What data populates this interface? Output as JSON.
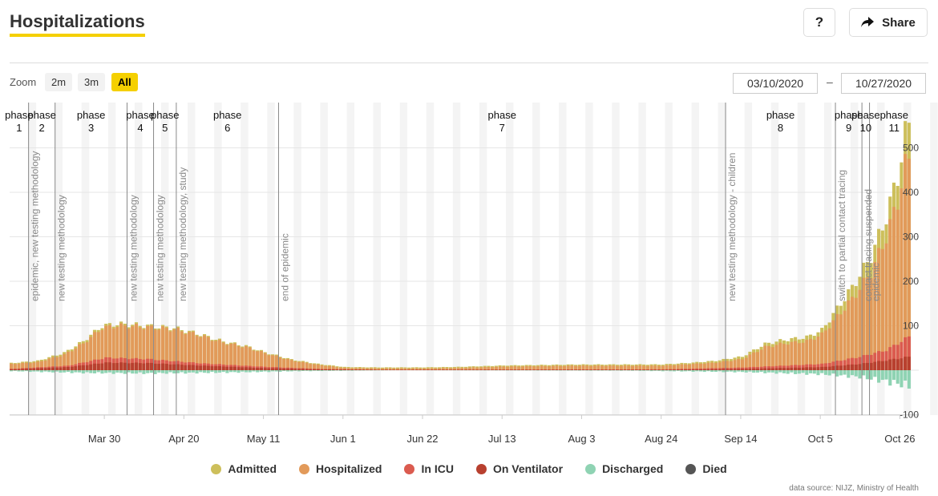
{
  "header": {
    "title": "Hospitalizations",
    "help_label": "?",
    "share_label": "Share"
  },
  "zoom": {
    "label": "Zoom",
    "options": [
      "2m",
      "3m",
      "All"
    ],
    "active": "All"
  },
  "range": {
    "from": "03/10/2020",
    "to": "10/27/2020",
    "separator": "–"
  },
  "source": "data source: NIJZ, Ministry of Health",
  "colors": {
    "admitted": "#cdbf5b",
    "hospitalized": "#e29a5a",
    "icu": "#db5b4f",
    "ventilator": "#b8402f",
    "discharged": "#8fd3b3",
    "died": "#555555"
  },
  "chart_data": {
    "type": "bar",
    "x_range": [
      "2020-03-05",
      "2020-10-31"
    ],
    "ylim": [
      -100,
      560
    ],
    "y_ticks": [
      -100,
      100,
      200,
      300,
      400,
      500
    ],
    "x_ticks": [
      "Mar 30",
      "Apr 20",
      "May 11",
      "Jun 1",
      "Jun 22",
      "Jul 13",
      "Aug 3",
      "Aug 24",
      "Sep 14",
      "Oct 5",
      "Oct 26"
    ],
    "x_tick_dates": [
      "2020-03-30",
      "2020-04-20",
      "2020-05-11",
      "2020-06-01",
      "2020-06-22",
      "2020-07-13",
      "2020-08-03",
      "2020-08-24",
      "2020-09-14",
      "2020-10-05",
      "2020-10-26"
    ],
    "legend": [
      "Admitted",
      "Hospitalized",
      "In ICU",
      "On Ventilator",
      "Discharged",
      "Died"
    ],
    "phases": [
      {
        "label": "phase",
        "num": "1",
        "start": "2020-03-05",
        "end": "2020-03-10"
      },
      {
        "label": "phase",
        "num": "2",
        "start": "2020-03-10",
        "end": "2020-03-17"
      },
      {
        "label": "phase",
        "num": "3",
        "start": "2020-03-17",
        "end": "2020-04-05"
      },
      {
        "label": "phase",
        "num": "4",
        "start": "2020-04-05",
        "end": "2020-04-12"
      },
      {
        "label": "phase",
        "num": "5",
        "start": "2020-04-12",
        "end": "2020-04-18"
      },
      {
        "label": "phase",
        "num": "6",
        "start": "2020-04-18",
        "end": "2020-05-15"
      },
      {
        "label": "phase",
        "num": "7",
        "start": "2020-05-15",
        "end": "2020-09-10"
      },
      {
        "label": "phase",
        "num": "8",
        "start": "2020-09-10",
        "end": "2020-10-09"
      },
      {
        "label": "phase",
        "num": "9",
        "start": "2020-10-09",
        "end": "2020-10-16"
      },
      {
        "label": "phase",
        "num": "10",
        "start": "2020-10-16",
        "end": "2020-10-18"
      },
      {
        "label": "phase",
        "num": "11",
        "start": "2020-10-18",
        "end": "2020-10-31"
      }
    ],
    "annotations": [
      {
        "date": "2020-03-10",
        "text": "epidemic, new testing methodology"
      },
      {
        "date": "2020-03-17",
        "text": "new testing methodology"
      },
      {
        "date": "2020-04-05",
        "text": "new testing methodology"
      },
      {
        "date": "2020-04-12",
        "text": "new testing methodology"
      },
      {
        "date": "2020-04-18",
        "text": "new testing methodology, study"
      },
      {
        "date": "2020-05-15",
        "text": "end of epidemic"
      },
      {
        "date": "2020-09-10",
        "text": "new testing methodology - children"
      },
      {
        "date": "2020-10-09",
        "text": "switch to partial contact tracing"
      },
      {
        "date": "2020-10-16",
        "text": "contact tracing suspended"
      },
      {
        "date": "2020-10-18",
        "text": "epidemic"
      }
    ],
    "series_knots": {
      "hospitalized": [
        [
          "2020-03-05",
          14
        ],
        [
          "2020-03-12",
          18
        ],
        [
          "2020-03-19",
          35
        ],
        [
          "2020-03-24",
          60
        ],
        [
          "2020-03-29",
          95
        ],
        [
          "2020-04-02",
          100
        ],
        [
          "2020-04-08",
          98
        ],
        [
          "2020-04-12",
          95
        ],
        [
          "2020-04-17",
          92
        ],
        [
          "2020-04-23",
          80
        ],
        [
          "2020-04-30",
          62
        ],
        [
          "2020-05-06",
          52
        ],
        [
          "2020-05-11",
          38
        ],
        [
          "2020-05-18",
          22
        ],
        [
          "2020-05-25",
          12
        ],
        [
          "2020-06-01",
          5
        ],
        [
          "2020-06-10",
          4
        ],
        [
          "2020-06-22",
          4
        ],
        [
          "2020-07-01",
          5
        ],
        [
          "2020-07-13",
          8
        ],
        [
          "2020-08-01",
          10
        ],
        [
          "2020-08-24",
          10
        ],
        [
          "2020-09-07",
          17
        ],
        [
          "2020-09-14",
          25
        ],
        [
          "2020-09-20",
          52
        ],
        [
          "2020-09-25",
          60
        ],
        [
          "2020-10-01",
          65
        ],
        [
          "2020-10-05",
          80
        ],
        [
          "2020-10-09",
          120
        ],
        [
          "2020-10-13",
          160
        ],
        [
          "2020-10-18",
          220
        ],
        [
          "2020-10-22",
          300
        ],
        [
          "2020-10-25",
          380
        ],
        [
          "2020-10-27",
          460
        ],
        [
          "2020-10-28",
          470
        ]
      ],
      "admitted_extra": [
        [
          "2020-03-05",
          2
        ],
        [
          "2020-03-25",
          5
        ],
        [
          "2020-04-10",
          3
        ],
        [
          "2020-05-15",
          2
        ],
        [
          "2020-09-01",
          3
        ],
        [
          "2020-10-05",
          10
        ],
        [
          "2020-10-15",
          30
        ],
        [
          "2020-10-22",
          45
        ],
        [
          "2020-10-26",
          60
        ],
        [
          "2020-10-28",
          80
        ]
      ],
      "icu": [
        [
          "2020-03-05",
          3
        ],
        [
          "2020-03-20",
          10
        ],
        [
          "2020-03-30",
          28
        ],
        [
          "2020-04-10",
          25
        ],
        [
          "2020-04-25",
          15
        ],
        [
          "2020-05-10",
          8
        ],
        [
          "2020-05-25",
          3
        ],
        [
          "2020-06-10",
          1
        ],
        [
          "2020-08-24",
          2
        ],
        [
          "2020-09-14",
          6
        ],
        [
          "2020-10-05",
          14
        ],
        [
          "2020-10-15",
          30
        ],
        [
          "2020-10-22",
          45
        ],
        [
          "2020-10-28",
          75
        ]
      ],
      "ventilator": [
        [
          "2020-03-05",
          2
        ],
        [
          "2020-03-20",
          7
        ],
        [
          "2020-03-30",
          17
        ],
        [
          "2020-04-10",
          16
        ],
        [
          "2020-04-25",
          10
        ],
        [
          "2020-05-10",
          5
        ],
        [
          "2020-05-25",
          2
        ],
        [
          "2020-06-10",
          1
        ],
        [
          "2020-08-24",
          1
        ],
        [
          "2020-09-14",
          3
        ],
        [
          "2020-10-05",
          7
        ],
        [
          "2020-10-15",
          14
        ],
        [
          "2020-10-22",
          22
        ],
        [
          "2020-10-28",
          30
        ]
      ],
      "discharged": [
        [
          "2020-03-05",
          -2
        ],
        [
          "2020-03-25",
          -6
        ],
        [
          "2020-04-10",
          -7
        ],
        [
          "2020-05-01",
          -5
        ],
        [
          "2020-05-20",
          -2
        ],
        [
          "2020-06-15",
          0
        ],
        [
          "2020-08-15",
          -1
        ],
        [
          "2020-09-14",
          -4
        ],
        [
          "2020-10-05",
          -9
        ],
        [
          "2020-10-15",
          -15
        ],
        [
          "2020-10-22",
          -25
        ],
        [
          "2020-10-28",
          -35
        ]
      ]
    }
  }
}
